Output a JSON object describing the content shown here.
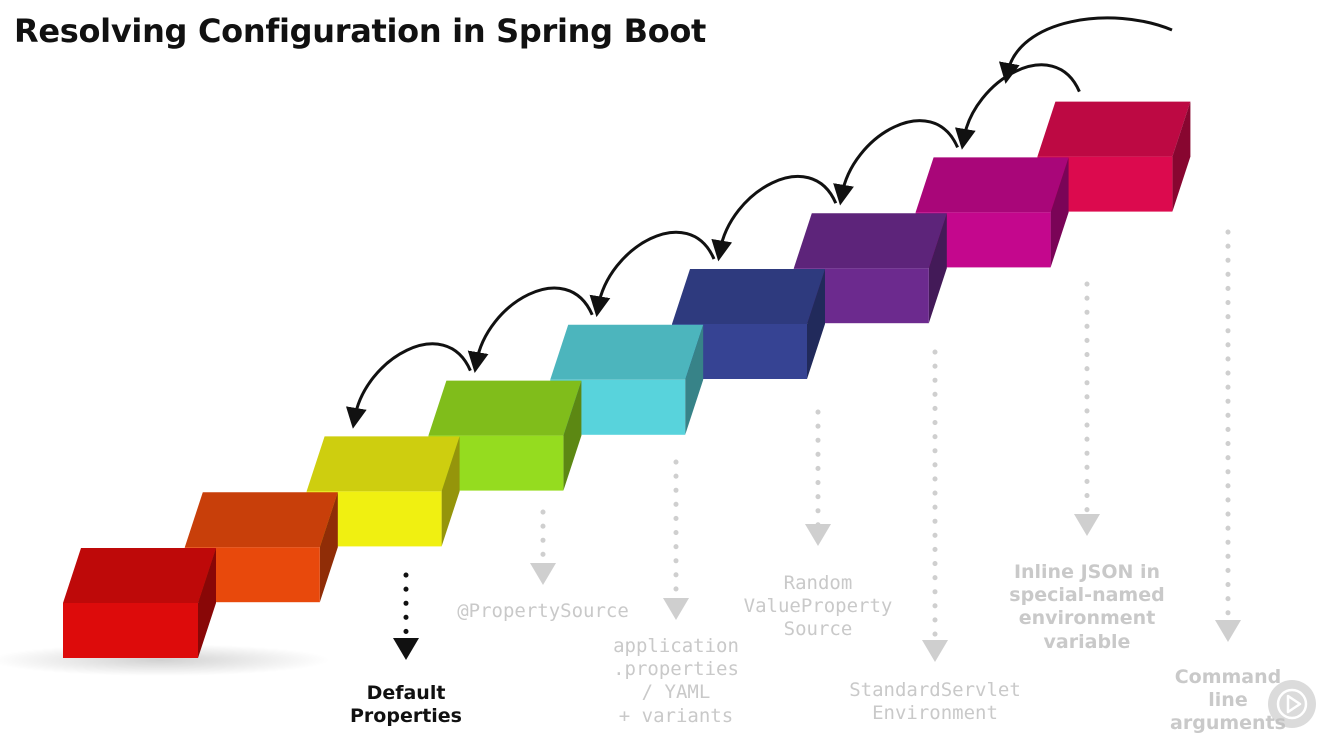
{
  "title": "Resolving Configuration in Spring Boot",
  "steps": [
    {
      "color": "#dd0b0b"
    },
    {
      "color": "#e8490c"
    },
    {
      "color": "#f0f011"
    },
    {
      "color": "#95dc1f"
    },
    {
      "color": "#58d3dc"
    },
    {
      "color": "#364393"
    },
    {
      "color": "#6c2a8e"
    },
    {
      "color": "#c4078d"
    },
    {
      "color": "#dc0a4e"
    }
  ],
  "sources": [
    {
      "id": "default",
      "step": 2,
      "lines": [
        "Default",
        "Properties"
      ]
    },
    {
      "id": "property-source",
      "step": 3,
      "lines": [
        "@PropertySource"
      ]
    },
    {
      "id": "application-properties",
      "step": 4,
      "lines": [
        "application",
        ".properties",
        "/ YAML",
        "+ variants"
      ]
    },
    {
      "id": "random-value",
      "step": 5,
      "lines": [
        "Random",
        "ValueProperty",
        "Source"
      ]
    },
    {
      "id": "servlet-env",
      "step": 6,
      "lines": [
        "StandardServlet",
        "Environment"
      ]
    },
    {
      "id": "inline-json",
      "step": 7,
      "lines": [
        "Inline JSON in",
        "special-named",
        "environment",
        "variable"
      ]
    },
    {
      "id": "command-line",
      "step": 8,
      "lines": [
        "Command",
        "line",
        "arguments"
      ]
    }
  ],
  "icons": {
    "play": "play-icon"
  }
}
